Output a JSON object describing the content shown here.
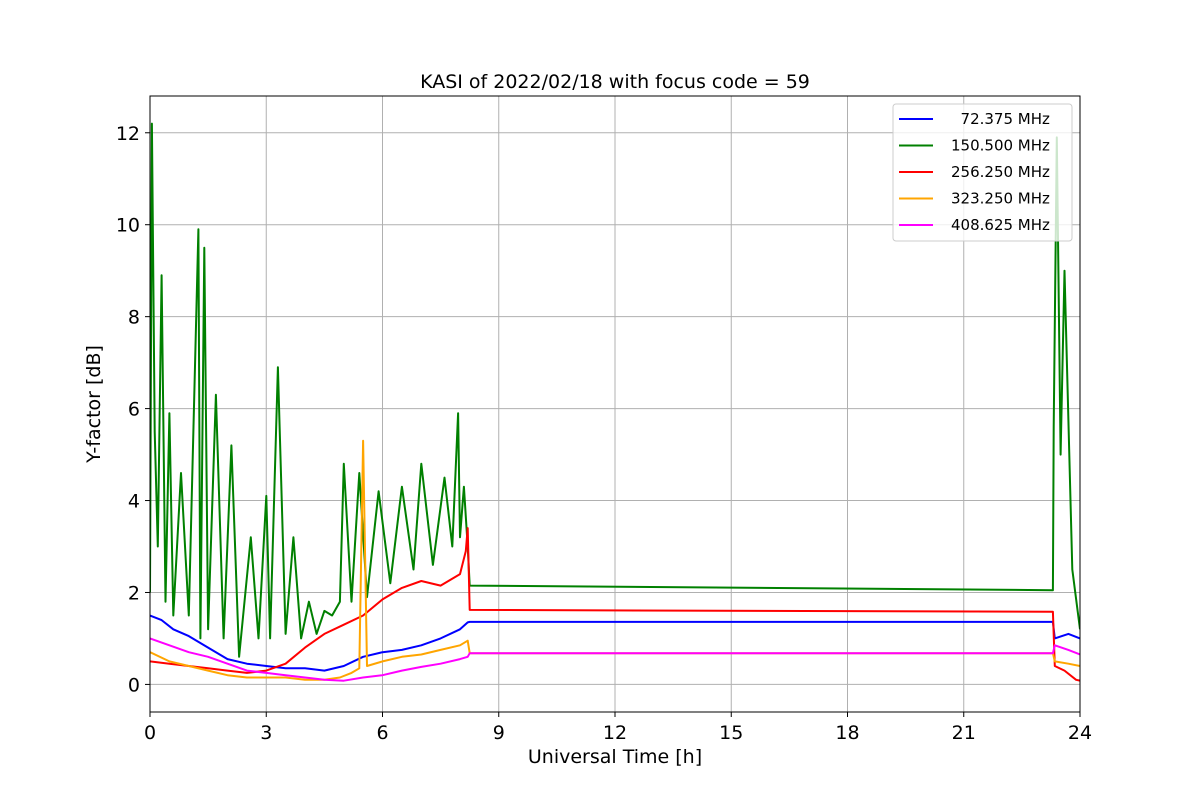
{
  "chart_data": {
    "type": "line",
    "title": "KASI of 2022/02/18 with focus code = 59",
    "xlabel": "Universal Time [h]",
    "ylabel": "Y-factor [dB]",
    "xlim": [
      0,
      24
    ],
    "ylim": [
      -0.6,
      12.8
    ],
    "xticks": [
      0,
      3,
      6,
      9,
      12,
      15,
      18,
      21,
      24
    ],
    "yticks": [
      0,
      2,
      4,
      6,
      8,
      10,
      12
    ],
    "grid": true,
    "legend_position": "top-right",
    "series": [
      {
        "name": "  72.375 MHz",
        "color": "#0000ff",
        "x": [
          0,
          0.3,
          0.6,
          1,
          1.5,
          2,
          2.5,
          3,
          3.5,
          4,
          4.5,
          5,
          5.5,
          6,
          6.5,
          7,
          7.5,
          8,
          8.2,
          8.25,
          23.3,
          23.35,
          23.7,
          24
        ],
        "y": [
          1.5,
          1.4,
          1.2,
          1.05,
          0.8,
          0.55,
          0.45,
          0.4,
          0.35,
          0.35,
          0.3,
          0.4,
          0.6,
          0.7,
          0.75,
          0.85,
          1.0,
          1.2,
          1.35,
          1.36,
          1.36,
          1.0,
          1.1,
          1.0
        ]
      },
      {
        "name": "150.500 MHz",
        "color": "#008000",
        "x": [
          0,
          0.05,
          0.12,
          0.2,
          0.3,
          0.4,
          0.5,
          0.6,
          0.8,
          1.0,
          1.25,
          1.3,
          1.4,
          1.5,
          1.7,
          1.9,
          2.1,
          2.3,
          2.6,
          2.8,
          3.0,
          3.1,
          3.3,
          3.5,
          3.7,
          3.9,
          4.1,
          4.3,
          4.5,
          4.7,
          4.9,
          5.0,
          5.2,
          5.4,
          5.6,
          5.9,
          6.2,
          6.5,
          6.8,
          7.0,
          7.3,
          7.6,
          7.8,
          7.95,
          8.0,
          8.1,
          8.2,
          8.25,
          23.3,
          23.32,
          23.4,
          23.5,
          23.6,
          23.8,
          24
        ],
        "y": [
          2.0,
          12.2,
          5.5,
          3.0,
          8.9,
          1.8,
          5.9,
          1.5,
          4.6,
          1.5,
          9.9,
          1.0,
          9.5,
          1.2,
          6.3,
          1.0,
          5.2,
          0.6,
          3.2,
          1.0,
          4.1,
          1.0,
          6.9,
          1.1,
          3.2,
          1.0,
          1.8,
          1.1,
          1.6,
          1.5,
          1.8,
          4.8,
          1.8,
          4.6,
          1.9,
          4.2,
          2.2,
          4.3,
          2.5,
          4.8,
          2.6,
          4.5,
          3.0,
          5.9,
          3.2,
          4.3,
          3.0,
          2.15,
          2.05,
          5.6,
          11.9,
          5.0,
          9.0,
          2.5,
          1.2
        ]
      },
      {
        "name": "256.250 MHz",
        "color": "#ff0000",
        "x": [
          0,
          0.5,
          1.0,
          1.5,
          2.0,
          2.5,
          3.0,
          3.5,
          4.0,
          4.5,
          5.0,
          5.5,
          6.0,
          6.5,
          7.0,
          7.5,
          8.0,
          8.15,
          8.2,
          8.25,
          23.3,
          23.35,
          23.6,
          23.9,
          24
        ],
        "y": [
          0.5,
          0.45,
          0.4,
          0.35,
          0.3,
          0.25,
          0.3,
          0.45,
          0.8,
          1.1,
          1.3,
          1.5,
          1.85,
          2.1,
          2.25,
          2.15,
          2.4,
          2.9,
          3.4,
          1.62,
          1.58,
          0.4,
          0.3,
          0.1,
          0.08
        ]
      },
      {
        "name": "323.250 MHz",
        "color": "#ffa500",
        "x": [
          0,
          0.5,
          1.0,
          1.5,
          2.0,
          2.5,
          3.0,
          3.5,
          4.0,
          4.5,
          4.9,
          5.2,
          5.4,
          5.5,
          5.6,
          6.0,
          6.5,
          7.0,
          7.5,
          8.0,
          8.2,
          8.25,
          23.3,
          23.35,
          23.7,
          24
        ],
        "y": [
          0.7,
          0.5,
          0.4,
          0.3,
          0.2,
          0.15,
          0.15,
          0.15,
          0.1,
          0.1,
          0.15,
          0.25,
          0.35,
          5.3,
          0.4,
          0.5,
          0.6,
          0.65,
          0.75,
          0.85,
          0.95,
          0.68,
          0.68,
          0.5,
          0.45,
          0.4
        ]
      },
      {
        "name": "408.625 MHz",
        "color": "#ff00ff",
        "x": [
          0,
          0.5,
          1.0,
          1.5,
          2.0,
          2.5,
          3.0,
          3.5,
          4.0,
          4.5,
          5.0,
          5.5,
          6.0,
          6.5,
          7.0,
          7.5,
          8.0,
          8.2,
          8.25,
          23.3,
          23.35,
          23.7,
          24
        ],
        "y": [
          1.0,
          0.85,
          0.7,
          0.6,
          0.45,
          0.3,
          0.25,
          0.2,
          0.15,
          0.1,
          0.08,
          0.15,
          0.2,
          0.3,
          0.38,
          0.45,
          0.55,
          0.6,
          0.68,
          0.68,
          0.85,
          0.75,
          0.65
        ]
      }
    ]
  }
}
